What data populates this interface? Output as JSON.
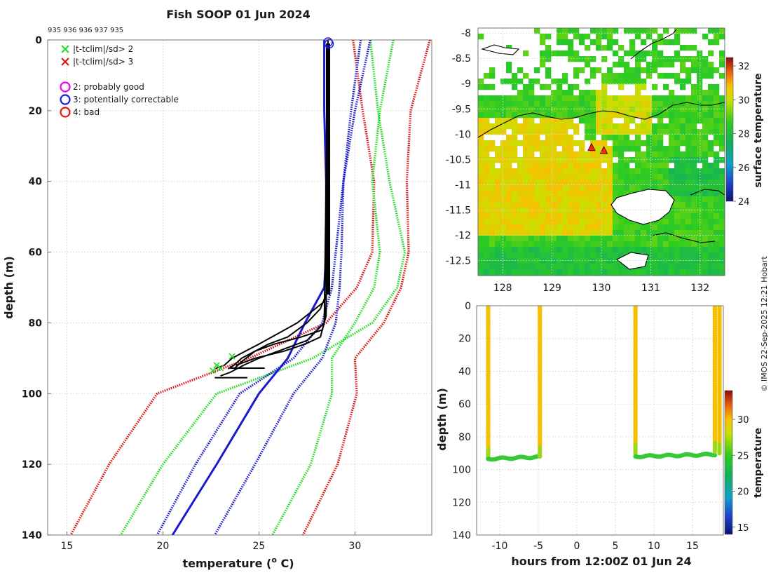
{
  "title": "Fish SOOP 01 Jun 2024",
  "copyright": "© IMOS 22-Sep-2025 12:21 Hobart",
  "colors": {
    "sd2": "#22dd22",
    "sd3": "#dd1111",
    "clim_center": "#1a1acc",
    "obs": "#000000",
    "mark2": "#ee00ee",
    "mark3": "#1a1aee",
    "mark4": "#ee1111"
  },
  "chart_data": [
    {
      "id": "profile",
      "type": "line",
      "title": "Fish SOOP 01 Jun 2024",
      "top_label": "935 936 936 937 935",
      "xlabel": "temperature (o C)",
      "xlabel_main": "temperature (",
      "xlabel_sup": "o",
      "xlabel_end": " C)",
      "ylabel": "depth (m)",
      "xlim": [
        14,
        34
      ],
      "ylim": [
        0,
        140
      ],
      "xticks": [
        15,
        20,
        25,
        30
      ],
      "yticks": [
        0,
        20,
        40,
        60,
        80,
        100,
        120,
        140
      ],
      "legend": [
        {
          "marker": "x",
          "color": "#22dd22",
          "label": "|t-tclim|/sd> 2"
        },
        {
          "marker": "x",
          "color": "#dd1111",
          "label": "|t-tclim|/sd> 3"
        },
        {
          "marker": "o",
          "color": "#ee00ee",
          "label": "2: probably good"
        },
        {
          "marker": "o",
          "color": "#1a1aee",
          "label": "3: potentially correctable"
        },
        {
          "marker": "o",
          "color": "#ee1111",
          "label": "4: bad"
        }
      ],
      "series": [
        {
          "name": "clim -3sd",
          "style": "dotted",
          "color": "#dd1111",
          "depth": [
            0,
            20,
            40,
            60,
            70,
            80,
            90,
            100,
            120,
            140
          ],
          "values": [
            29.9,
            30.4,
            31.0,
            30.9,
            30.1,
            28.5,
            24.5,
            19.7,
            17.2,
            15.2
          ]
        },
        {
          "name": "clim +3sd",
          "style": "dotted",
          "color": "#dd1111",
          "depth": [
            0,
            20,
            40,
            60,
            70,
            80,
            90,
            100,
            120,
            140
          ],
          "values": [
            33.9,
            32.9,
            32.7,
            32.8,
            32.4,
            31.5,
            30.0,
            30.1,
            29.1,
            27.3
          ]
        },
        {
          "name": "clim -2sd",
          "style": "dotted",
          "color": "#22dd22",
          "depth": [
            0,
            20,
            40,
            60,
            70,
            80,
            90,
            100,
            120,
            140
          ],
          "values": [
            30.8,
            31.2,
            31.8,
            32.6,
            32.2,
            30.9,
            27.8,
            22.8,
            20.0,
            17.8
          ]
        },
        {
          "name": "clim +2sd",
          "style": "dotted",
          "color": "#22dd22",
          "depth": [
            0,
            20,
            40,
            60,
            70,
            80,
            90,
            100,
            120,
            140
          ],
          "values": [
            32.0,
            31.3,
            30.9,
            31.3,
            31.0,
            30.0,
            28.8,
            28.8,
            27.7,
            25.7
          ]
        },
        {
          "name": "clim -1sd",
          "style": "dotted",
          "color": "#1a1acc",
          "depth": [
            0,
            20,
            40,
            60,
            70,
            80,
            90,
            100,
            120,
            140
          ],
          "values": [
            30.8,
            30.0,
            29.4,
            29.0,
            28.8,
            28.3,
            26.8,
            24.0,
            21.7,
            19.7
          ]
        },
        {
          "name": "clim +1sd",
          "style": "dotted",
          "color": "#1a1acc",
          "depth": [
            0,
            20,
            40,
            60,
            70,
            80,
            90,
            100,
            120,
            140
          ],
          "values": [
            30.3,
            29.8,
            29.4,
            29.3,
            29.2,
            29.0,
            28.3,
            26.8,
            24.8,
            22.7
          ]
        },
        {
          "name": "clim mean",
          "style": "solid",
          "color": "#1a1acc",
          "depth": [
            0,
            10,
            20,
            40,
            60,
            70,
            80,
            90,
            100,
            120,
            140
          ],
          "values": [
            28.4,
            28.4,
            28.4,
            28.5,
            28.5,
            28.4,
            27.4,
            26.5,
            25.0,
            22.8,
            20.5
          ]
        },
        {
          "name": "obs 1",
          "style": "solid",
          "color": "#000000",
          "depth": [
            0,
            70,
            74,
            80,
            83,
            86,
            88,
            90,
            92,
            93
          ],
          "values": [
            28.6,
            28.6,
            28.4,
            27.0,
            26.0,
            25.0,
            24.3,
            23.6,
            23.2,
            22.7
          ]
        },
        {
          "name": "obs 2",
          "style": "solid",
          "color": "#000000",
          "depth": [
            0,
            72,
            76,
            80,
            84,
            86,
            88,
            91,
            93
          ],
          "values": [
            28.6,
            28.5,
            28.2,
            27.5,
            26.5,
            25.5,
            24.8,
            24.1,
            23.7
          ]
        },
        {
          "name": "obs 3",
          "style": "solid",
          "color": "#000000",
          "depth": [
            0,
            75,
            80,
            85,
            88,
            90,
            92,
            94,
            95
          ],
          "values": [
            28.6,
            28.5,
            28.4,
            27.5,
            26.0,
            25.0,
            24.2,
            23.5,
            23.0
          ]
        },
        {
          "name": "obs 4",
          "style": "solid",
          "color": "#000000",
          "depth": [
            0,
            78,
            82,
            84,
            86,
            88,
            90,
            92,
            93
          ],
          "values": [
            28.6,
            28.5,
            28.3,
            27.2,
            25.8,
            24.8,
            24.1,
            23.7,
            23.4
          ]
        },
        {
          "name": "obs 5",
          "style": "solid",
          "color": "#000000",
          "depth": [
            0,
            80,
            84,
            86,
            88,
            90,
            92
          ],
          "values": [
            28.6,
            28.4,
            28.2,
            27.4,
            26.3,
            24.8,
            23.8
          ]
        }
      ],
      "flags_sd2": [
        {
          "t": 22.6,
          "d": 93.5
        },
        {
          "t": 23.0,
          "d": 92.8
        },
        {
          "t": 22.8,
          "d": 92.0
        },
        {
          "t": 23.6,
          "d": 89.5
        }
      ],
      "flags_circle3": [
        {
          "t": 28.6,
          "d": 0.6
        },
        {
          "t": 28.6,
          "d": 0.9
        }
      ]
    },
    {
      "id": "sst_map",
      "type": "heatmap",
      "xlim": [
        127.5,
        132.5
      ],
      "ylim": [
        -12.8,
        -7.9
      ],
      "xticks": [
        128,
        129,
        130,
        131,
        132
      ],
      "yticks": [
        -8,
        -8.5,
        -9,
        -9.5,
        -10,
        -10.5,
        -11,
        -11.5,
        -12,
        -12.5
      ],
      "colorbar_label": "surface temperature",
      "colorbar_range": [
        24,
        32.5
      ],
      "colorbar_ticks": [
        24,
        26,
        28,
        30,
        32
      ],
      "stations": [
        {
          "lon": 129.8,
          "lat": -10.27
        },
        {
          "lon": 130.05,
          "lat": -10.33
        }
      ]
    },
    {
      "id": "time_depth",
      "type": "scatter",
      "xlabel": "hours from 12:00Z 01 Jun 24",
      "ylabel": "depth (m)",
      "xlim": [
        -13,
        19
      ],
      "ylim": [
        0,
        140
      ],
      "xticks": [
        -10,
        -5,
        0,
        5,
        10,
        15
      ],
      "yticks": [
        0,
        20,
        40,
        60,
        80,
        100,
        120,
        140
      ],
      "colorbar_label": "temperature",
      "colorbar_range": [
        14,
        34
      ],
      "colorbar_ticks": [
        15,
        20,
        25,
        30
      ],
      "casts": [
        {
          "t_start": -11.5,
          "t_end": -11.5,
          "depth_max": 93
        },
        {
          "t_start": -11.5,
          "t_end": -4.8,
          "depth_max": 93.5,
          "bottom": true
        },
        {
          "t_start": -4.8,
          "t_end": -4.8,
          "depth_max": 92
        },
        {
          "t_start": 7.6,
          "t_end": 7.6,
          "depth_max": 90
        },
        {
          "t_start": 7.6,
          "t_end": 17.9,
          "depth_max": 92,
          "bottom": true
        },
        {
          "t_start": 17.9,
          "t_end": 17.9,
          "depth_max": 89
        },
        {
          "t_start": 18.5,
          "t_end": 18.5,
          "depth_max": 90
        }
      ]
    }
  ]
}
